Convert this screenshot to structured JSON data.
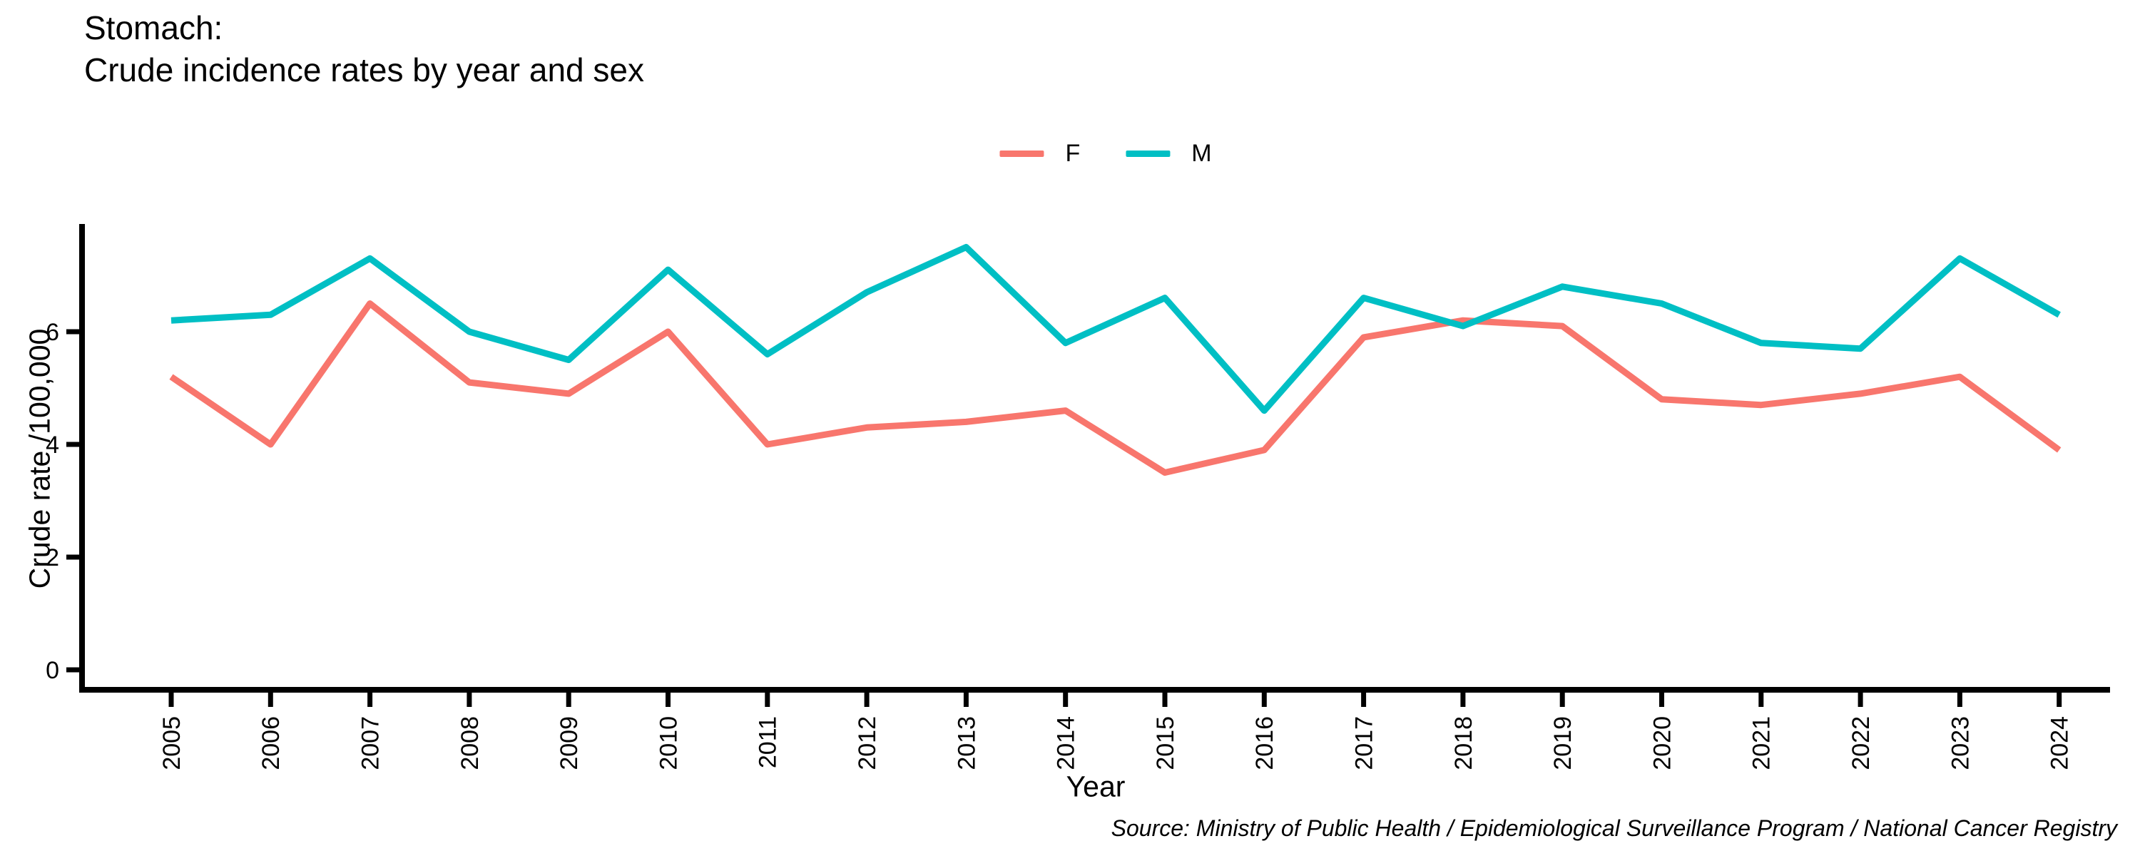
{
  "title": {
    "line1": "Stomach:",
    "line2": "Crude incidence rates by year and sex"
  },
  "source": "Source: Ministry of Public Health / Epidemiological Surveillance Program / National Cancer Registry",
  "chart_data": {
    "type": "line",
    "title": "Stomach: Crude incidence rates by year and sex",
    "xlabel": "Year",
    "ylabel": "Crude rate /100,000",
    "categories": [
      2005,
      2006,
      2007,
      2008,
      2009,
      2010,
      2011,
      2012,
      2013,
      2014,
      2015,
      2016,
      2017,
      2018,
      2019,
      2020,
      2021,
      2022,
      2023,
      2024
    ],
    "series": [
      {
        "name": "F",
        "color": "#F8766D",
        "values": [
          5.2,
          4.0,
          6.5,
          5.1,
          4.9,
          6.0,
          4.0,
          4.3,
          4.4,
          4.6,
          3.5,
          3.9,
          5.9,
          6.2,
          6.1,
          4.8,
          4.7,
          4.9,
          5.2,
          3.9
        ]
      },
      {
        "name": "M",
        "color": "#00BFC4",
        "values": [
          6.2,
          6.3,
          7.3,
          6.0,
          5.5,
          7.1,
          5.6,
          6.7,
          7.5,
          5.8,
          6.6,
          4.6,
          6.6,
          6.1,
          6.8,
          6.5,
          5.8,
          5.7,
          7.3,
          6.3
        ]
      }
    ],
    "ylim": [
      0,
      7.9
    ],
    "yticks": [
      0,
      2,
      4,
      6
    ],
    "grid": false,
    "legend_position": "top-center",
    "x_tick_rotation": 90,
    "axis_color": "#000000"
  }
}
